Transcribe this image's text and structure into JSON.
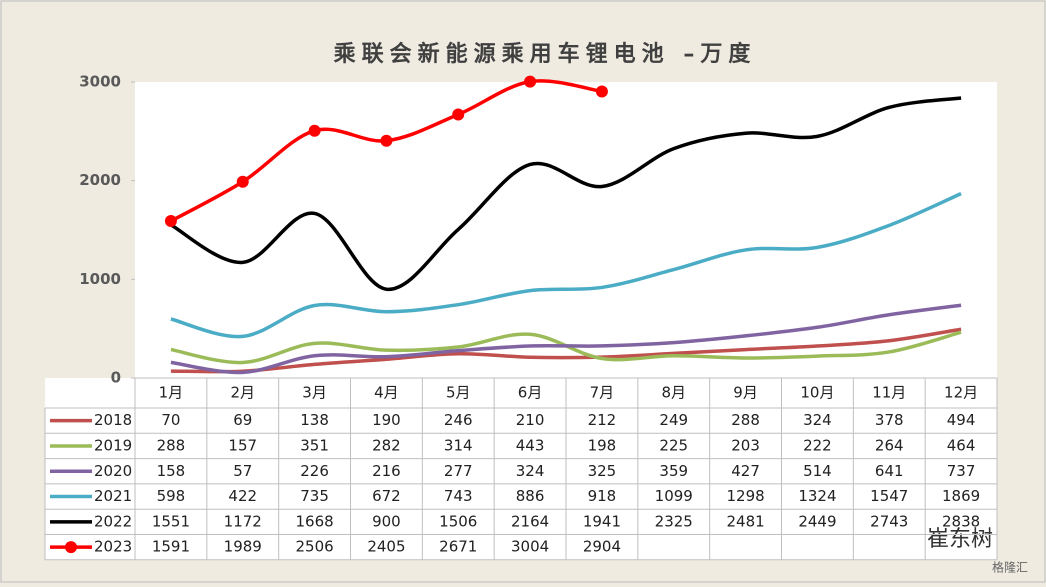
{
  "chart_data": {
    "type": "line",
    "title": "乘联会新能源乘用车锂电池 –万度",
    "categories": [
      "1月",
      "2月",
      "3月",
      "4月",
      "5月",
      "6月",
      "7月",
      "8月",
      "9月",
      "10月",
      "11月",
      "12月"
    ],
    "series": [
      {
        "name": "2018",
        "color": "#c0504d",
        "values": [
          70,
          69,
          138,
          190,
          246,
          210,
          212,
          249,
          288,
          324,
          378,
          494
        ]
      },
      {
        "name": "2019",
        "color": "#9bbb59",
        "values": [
          288,
          157,
          351,
          282,
          314,
          443,
          198,
          225,
          203,
          222,
          264,
          464
        ]
      },
      {
        "name": "2020",
        "color": "#8064a2",
        "values": [
          158,
          57,
          226,
          216,
          277,
          324,
          325,
          359,
          427,
          514,
          641,
          737
        ]
      },
      {
        "name": "2021",
        "color": "#4bacc6",
        "values": [
          598,
          422,
          735,
          672,
          743,
          886,
          918,
          1099,
          1298,
          1324,
          1547,
          1869
        ]
      },
      {
        "name": "2022",
        "color": "#000000",
        "values": [
          1551,
          1172,
          1668,
          900,
          1506,
          2164,
          1941,
          2325,
          2481,
          2449,
          2743,
          2838
        ]
      },
      {
        "name": "2023",
        "color": "#ff0000",
        "markers": true,
        "values": [
          1591,
          1989,
          2506,
          2405,
          2671,
          3004,
          2904,
          null,
          null,
          null,
          null,
          null
        ]
      }
    ],
    "ylim": [
      0,
      3000
    ],
    "yticks": [
      0,
      1000,
      2000,
      3000
    ],
    "data_table": true
  },
  "watermark": "崔东树",
  "watermark_site": "格隆汇"
}
